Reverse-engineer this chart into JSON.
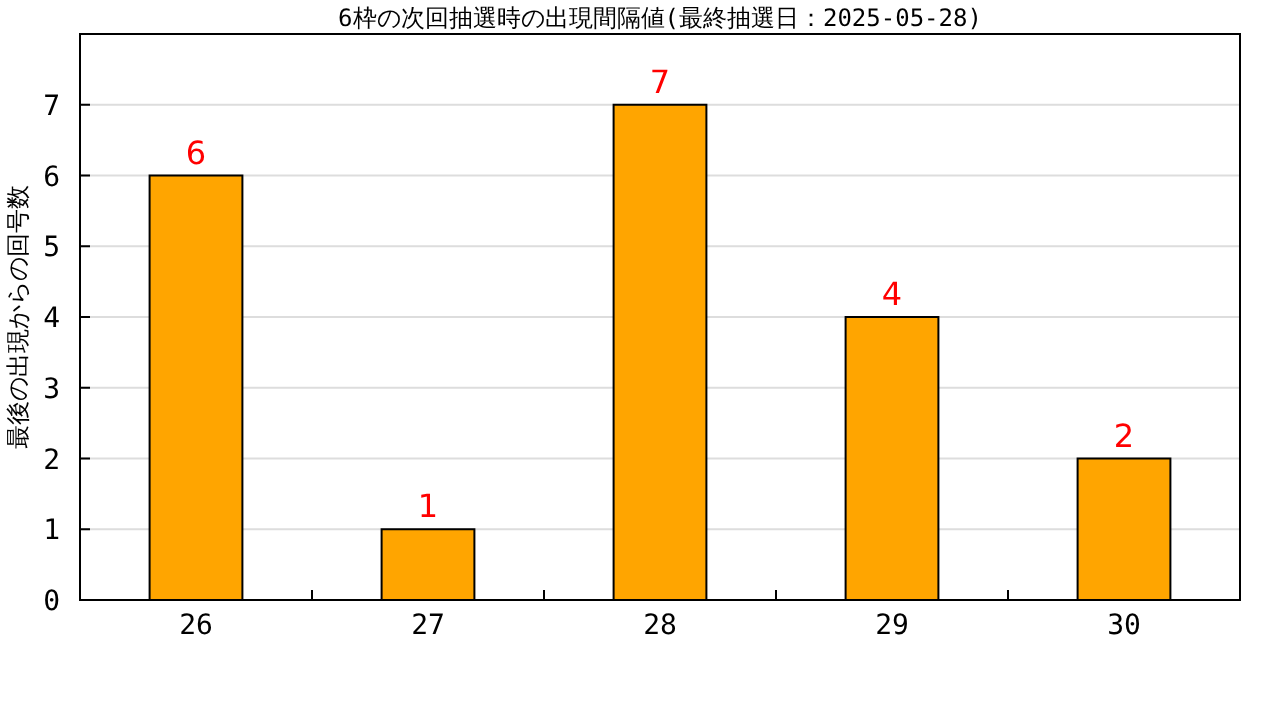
{
  "chart_data": {
    "type": "bar",
    "title": "6枠の次回抽選時の出現間隔値(最終抽選日：2025-05-28)",
    "ylabel": "最後の出現からの回号数",
    "categories": [
      "26",
      "27",
      "28",
      "29",
      "30"
    ],
    "series": [
      {
        "color": "#ffa500",
        "values": [
          6,
          1,
          7,
          4,
          2
        ]
      }
    ],
    "ylim": [
      0,
      8
    ],
    "yticks": [
      0,
      1,
      2,
      3,
      4,
      5,
      6,
      7
    ],
    "grid": "y",
    "data_labels": true
  }
}
